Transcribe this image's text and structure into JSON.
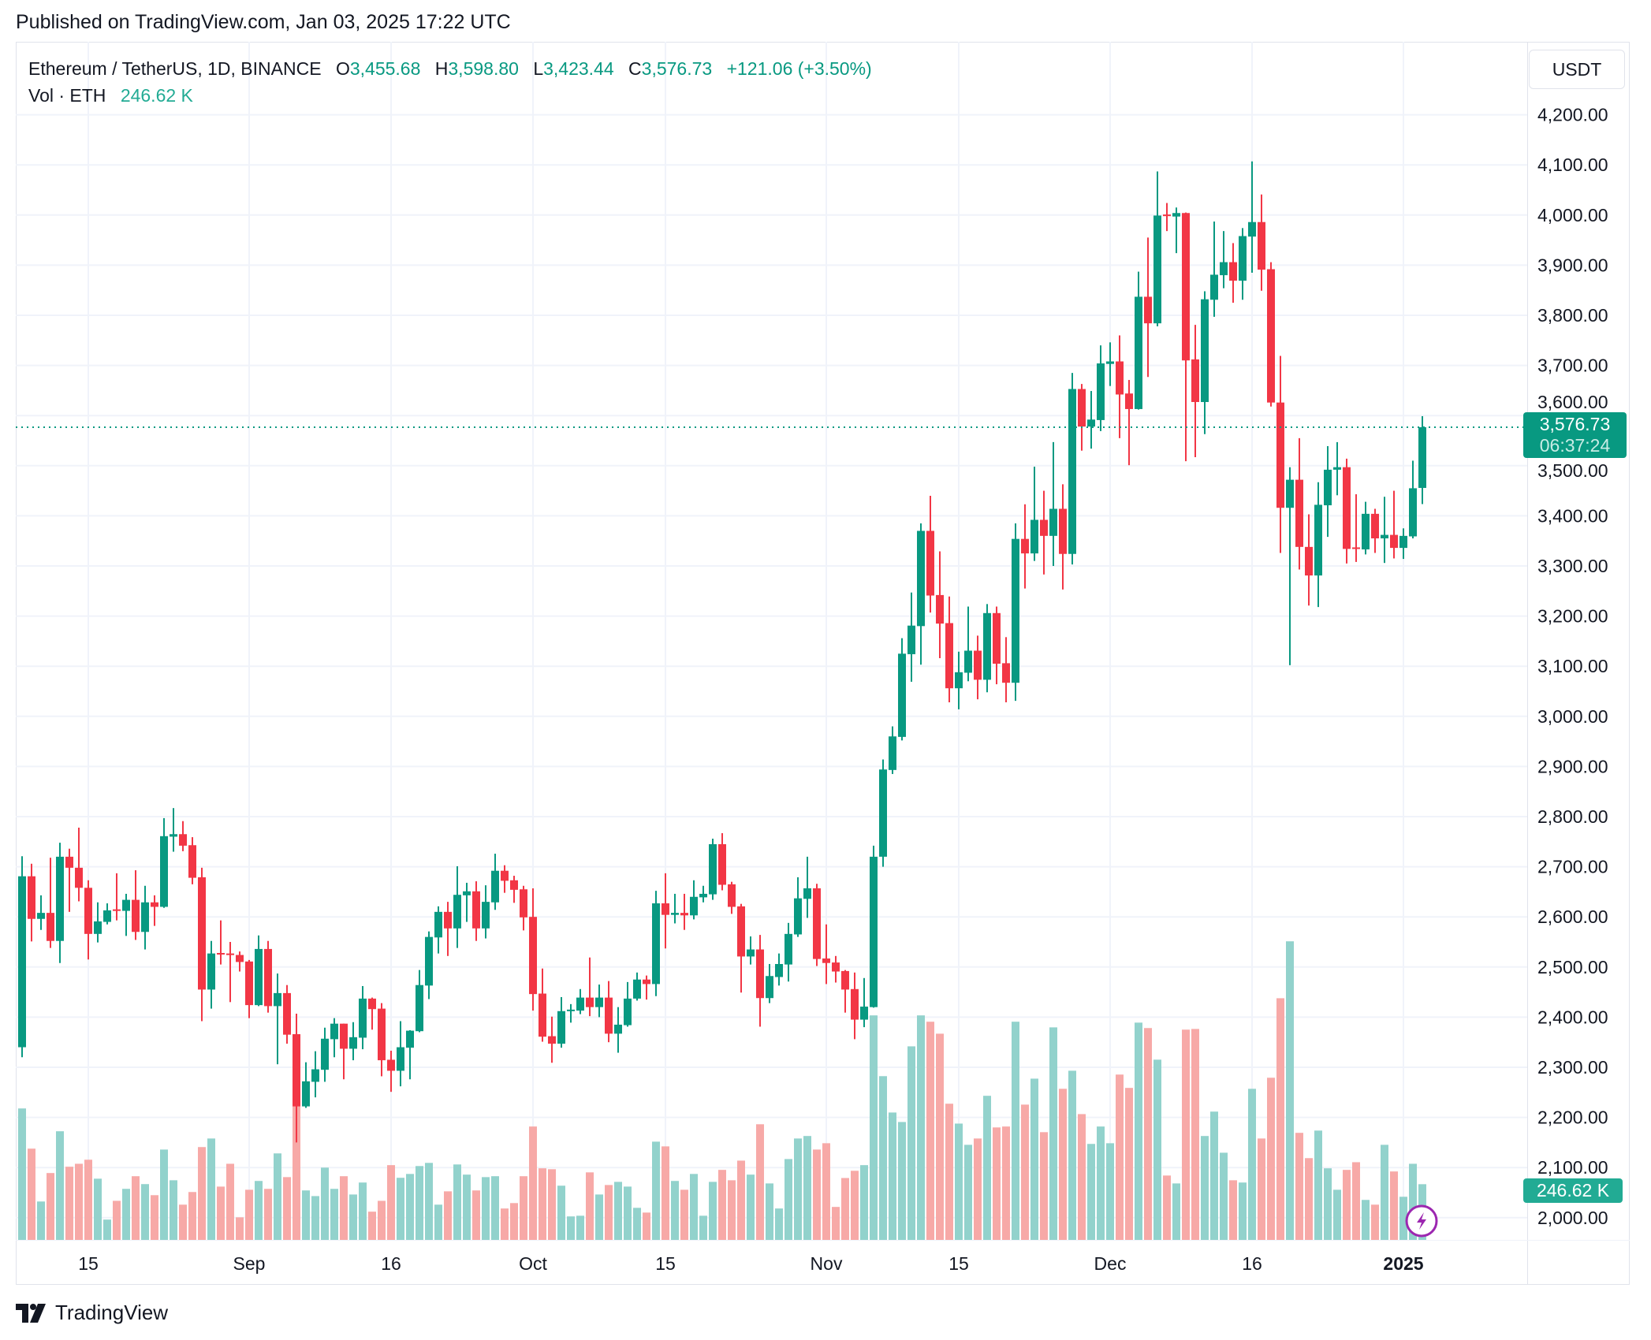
{
  "published": "Published on TradingView.com, Jan 03, 2025 17:22 UTC",
  "legend": {
    "symbol": "Ethereum / TetherUS, 1D, BINANCE",
    "o_label": "O",
    "o": "3,455.68",
    "h_label": "H",
    "h": "3,598.80",
    "l_label": "L",
    "l": "3,423.44",
    "c_label": "C",
    "c": "3,576.73",
    "change": "+121.06 (+3.50%)",
    "vol_label": "Vol · ETH",
    "vol": "246.62 K"
  },
  "currency_button": "USDT",
  "last_price": {
    "price": "3,576.73",
    "countdown": "06:37:24",
    "value": 3576.73
  },
  "volume_badge": "246.62 K",
  "brand": "TradingView",
  "colors": {
    "up": "#089981",
    "down": "#F23645",
    "up_volume": "#92d2cc",
    "down_volume": "#f7a9a7",
    "grid": "#f0f3fa",
    "alert_icon": "#9c27b0"
  },
  "icons": {
    "logo": "tradingview-logo-icon",
    "alert": "lightning-icon"
  },
  "chart_data": {
    "type": "candlestick",
    "title": "Ethereum / TetherUS, 1D, BINANCE",
    "ylim": [
      1950,
      4230
    ],
    "volume_unit": "K ETH",
    "grid": true,
    "y_ticks": [
      {
        "value": 4200,
        "label": "4,200.00"
      },
      {
        "value": 4100,
        "label": "4,100.00"
      },
      {
        "value": 4000,
        "label": "4,000.00"
      },
      {
        "value": 3900,
        "label": "3,900.00"
      },
      {
        "value": 3800,
        "label": "3,800.00"
      },
      {
        "value": 3700,
        "label": "3,700.00"
      },
      {
        "value": 3600,
        "label": "3,600.00"
      },
      {
        "value": 3500,
        "label": "3,500.00"
      },
      {
        "value": 3400,
        "label": "3,400.00"
      },
      {
        "value": 3300,
        "label": "3,300.00"
      },
      {
        "value": 3200,
        "label": "3,200.00"
      },
      {
        "value": 3100,
        "label": "3,100.00"
      },
      {
        "value": 3000,
        "label": "3,000.00"
      },
      {
        "value": 2900,
        "label": "2,900.00"
      },
      {
        "value": 2800,
        "label": "2,800.00"
      },
      {
        "value": 2700,
        "label": "2,700.00"
      },
      {
        "value": 2600,
        "label": "2,600.00"
      },
      {
        "value": 2500,
        "label": "2,500.00"
      },
      {
        "value": 2400,
        "label": "2,400.00"
      },
      {
        "value": 2300,
        "label": "2,300.00"
      },
      {
        "value": 2200,
        "label": "2,200.00"
      },
      {
        "value": 2100,
        "label": "2,100.00"
      },
      {
        "value": 2000,
        "label": "2,000.00"
      }
    ],
    "x_ticks": [
      {
        "date": "2024-08-15",
        "label": "15"
      },
      {
        "date": "2024-09-01",
        "label": "Sep"
      },
      {
        "date": "2024-09-16",
        "label": "16"
      },
      {
        "date": "2024-10-01",
        "label": "Oct"
      },
      {
        "date": "2024-10-15",
        "label": "15"
      },
      {
        "date": "2024-11-01",
        "label": "Nov"
      },
      {
        "date": "2024-11-15",
        "label": "15"
      },
      {
        "date": "2024-12-01",
        "label": "Dec"
      },
      {
        "date": "2024-12-16",
        "label": "16"
      },
      {
        "date": "2025-01-01",
        "label": "2025",
        "bold": true
      }
    ],
    "columns": [
      "date",
      "open",
      "high",
      "low",
      "close",
      "volume"
    ],
    "candles": [
      [
        "2024-08-08",
        2340,
        2721,
        2320,
        2681,
        582
      ],
      [
        "2024-08-09",
        2681,
        2706,
        2551,
        2596,
        404
      ],
      [
        "2024-08-10",
        2596,
        2643,
        2574,
        2608,
        170
      ],
      [
        "2024-08-11",
        2608,
        2718,
        2538,
        2552,
        296
      ],
      [
        "2024-08-12",
        2552,
        2748,
        2508,
        2720,
        481
      ],
      [
        "2024-08-13",
        2720,
        2736,
        2610,
        2698,
        324
      ],
      [
        "2024-08-14",
        2698,
        2778,
        2631,
        2658,
        337
      ],
      [
        "2024-08-15",
        2658,
        2673,
        2515,
        2566,
        355
      ],
      [
        "2024-08-16",
        2566,
        2629,
        2549,
        2591,
        271
      ],
      [
        "2024-08-17",
        2590,
        2627,
        2585,
        2613,
        90
      ],
      [
        "2024-08-18",
        2615,
        2687,
        2593,
        2612,
        173
      ],
      [
        "2024-08-19",
        2612,
        2646,
        2562,
        2634,
        226
      ],
      [
        "2024-08-20",
        2634,
        2693,
        2554,
        2570,
        282
      ],
      [
        "2024-08-21",
        2570,
        2662,
        2535,
        2629,
        247
      ],
      [
        "2024-08-22",
        2629,
        2643,
        2582,
        2620,
        198
      ],
      [
        "2024-08-23",
        2620,
        2797,
        2618,
        2761,
        400
      ],
      [
        "2024-08-24",
        2760,
        2817,
        2730,
        2765,
        264
      ],
      [
        "2024-08-25",
        2765,
        2791,
        2731,
        2742,
        156
      ],
      [
        "2024-08-26",
        2743,
        2759,
        2665,
        2678,
        212
      ],
      [
        "2024-08-27",
        2679,
        2698,
        2392,
        2455,
        411
      ],
      [
        "2024-08-28",
        2455,
        2552,
        2417,
        2527,
        449
      ],
      [
        "2024-08-29",
        2528,
        2593,
        2505,
        2526,
        236
      ],
      [
        "2024-08-30",
        2527,
        2550,
        2430,
        2524,
        337
      ],
      [
        "2024-08-31",
        2524,
        2531,
        2491,
        2510,
        100
      ],
      [
        "2024-09-01",
        2511,
        2514,
        2398,
        2424,
        222
      ],
      [
        "2024-09-02",
        2424,
        2563,
        2422,
        2536,
        261
      ],
      [
        "2024-09-03",
        2536,
        2552,
        2409,
        2422,
        226
      ],
      [
        "2024-09-04",
        2422,
        2487,
        2306,
        2448,
        383
      ],
      [
        "2024-09-05",
        2448,
        2464,
        2347,
        2365,
        278
      ],
      [
        "2024-09-06",
        2366,
        2407,
        2150,
        2222,
        593
      ],
      [
        "2024-09-07",
        2222,
        2310,
        2219,
        2272,
        219
      ],
      [
        "2024-09-08",
        2271,
        2332,
        2240,
        2296,
        194
      ],
      [
        "2024-09-09",
        2295,
        2379,
        2271,
        2357,
        320
      ],
      [
        "2024-09-10",
        2356,
        2398,
        2320,
        2387,
        226
      ],
      [
        "2024-09-11",
        2387,
        2387,
        2276,
        2337,
        282
      ],
      [
        "2024-09-12",
        2337,
        2390,
        2314,
        2360,
        201
      ],
      [
        "2024-09-13",
        2359,
        2462,
        2336,
        2437,
        254
      ],
      [
        "2024-09-14",
        2437,
        2439,
        2375,
        2416,
        125
      ],
      [
        "2024-09-15",
        2417,
        2428,
        2282,
        2314,
        173
      ],
      [
        "2024-09-16",
        2315,
        2333,
        2251,
        2293,
        331
      ],
      [
        "2024-09-17",
        2293,
        2392,
        2262,
        2340,
        275
      ],
      [
        "2024-09-18",
        2339,
        2374,
        2276,
        2373,
        292
      ],
      [
        "2024-09-19",
        2372,
        2494,
        2370,
        2464,
        327
      ],
      [
        "2024-09-20",
        2463,
        2571,
        2436,
        2560,
        341
      ],
      [
        "2024-09-21",
        2559,
        2621,
        2527,
        2610,
        156
      ],
      [
        "2024-09-22",
        2610,
        2630,
        2522,
        2577,
        215
      ],
      [
        "2024-09-23",
        2577,
        2701,
        2538,
        2644,
        334
      ],
      [
        "2024-09-24",
        2643,
        2668,
        2590,
        2651,
        289
      ],
      [
        "2024-09-25",
        2651,
        2671,
        2552,
        2577,
        219
      ],
      [
        "2024-09-26",
        2577,
        2663,
        2557,
        2630,
        278
      ],
      [
        "2024-09-27",
        2629,
        2726,
        2614,
        2692,
        282
      ],
      [
        "2024-09-28",
        2692,
        2703,
        2648,
        2672,
        139
      ],
      [
        "2024-09-29",
        2673,
        2682,
        2628,
        2654,
        163
      ],
      [
        "2024-09-30",
        2655,
        2662,
        2573,
        2599,
        282
      ],
      [
        "2024-10-01",
        2600,
        2657,
        2413,
        2446,
        502
      ],
      [
        "2024-10-02",
        2447,
        2497,
        2351,
        2361,
        317
      ],
      [
        "2024-10-03",
        2362,
        2401,
        2309,
        2347,
        313
      ],
      [
        "2024-10-04",
        2347,
        2440,
        2339,
        2412,
        240
      ],
      [
        "2024-10-05",
        2413,
        2426,
        2389,
        2415,
        104
      ],
      [
        "2024-10-06",
        2413,
        2456,
        2406,
        2439,
        107
      ],
      [
        "2024-10-07",
        2439,
        2519,
        2402,
        2420,
        299
      ],
      [
        "2024-10-08",
        2420,
        2465,
        2400,
        2439,
        201
      ],
      [
        "2024-10-09",
        2439,
        2472,
        2350,
        2367,
        243
      ],
      [
        "2024-10-10",
        2367,
        2420,
        2329,
        2385,
        257
      ],
      [
        "2024-10-11",
        2384,
        2470,
        2381,
        2437,
        236
      ],
      [
        "2024-10-12",
        2437,
        2489,
        2433,
        2475,
        142
      ],
      [
        "2024-10-13",
        2475,
        2483,
        2435,
        2466,
        121
      ],
      [
        "2024-10-14",
        2466,
        2652,
        2442,
        2627,
        435
      ],
      [
        "2024-10-15",
        2627,
        2687,
        2537,
        2604,
        414
      ],
      [
        "2024-10-16",
        2604,
        2646,
        2587,
        2608,
        261
      ],
      [
        "2024-10-17",
        2608,
        2646,
        2574,
        2603,
        222
      ],
      [
        "2024-10-18",
        2603,
        2673,
        2595,
        2640,
        292
      ],
      [
        "2024-10-19",
        2639,
        2662,
        2629,
        2646,
        107
      ],
      [
        "2024-10-20",
        2645,
        2756,
        2634,
        2745,
        257
      ],
      [
        "2024-10-21",
        2745,
        2767,
        2653,
        2664,
        310
      ],
      [
        "2024-10-22",
        2665,
        2670,
        2606,
        2620,
        264
      ],
      [
        "2024-10-23",
        2621,
        2626,
        2449,
        2521,
        351
      ],
      [
        "2024-10-24",
        2521,
        2561,
        2505,
        2535,
        289
      ],
      [
        "2024-10-25",
        2535,
        2564,
        2381,
        2438,
        512
      ],
      [
        "2024-10-26",
        2438,
        2506,
        2428,
        2482,
        250
      ],
      [
        "2024-10-27",
        2480,
        2527,
        2463,
        2506,
        139
      ],
      [
        "2024-10-28",
        2505,
        2588,
        2471,
        2566,
        358
      ],
      [
        "2024-10-29",
        2565,
        2679,
        2560,
        2637,
        449
      ],
      [
        "2024-10-30",
        2636,
        2720,
        2598,
        2657,
        460
      ],
      [
        "2024-10-31",
        2657,
        2666,
        2502,
        2516,
        400
      ],
      [
        "2024-11-01",
        2517,
        2585,
        2466,
        2508,
        428
      ],
      [
        "2024-11-02",
        2509,
        2522,
        2469,
        2491,
        146
      ],
      [
        "2024-11-03",
        2492,
        2494,
        2409,
        2455,
        274
      ],
      [
        "2024-11-04",
        2456,
        2489,
        2356,
        2395,
        306
      ],
      [
        "2024-11-05",
        2395,
        2478,
        2380,
        2421,
        331
      ],
      [
        "2024-11-06",
        2420,
        2742,
        2419,
        2720,
        994
      ],
      [
        "2024-11-07",
        2720,
        2914,
        2700,
        2894,
        725
      ],
      [
        "2024-11-08",
        2893,
        2980,
        2885,
        2960,
        564
      ],
      [
        "2024-11-09",
        2959,
        3156,
        2952,
        3125,
        522
      ],
      [
        "2024-11-10",
        3124,
        3247,
        3069,
        3181,
        857
      ],
      [
        "2024-11-11",
        3180,
        3385,
        3103,
        3370,
        994
      ],
      [
        "2024-11-12",
        3370,
        3440,
        3207,
        3241,
        966
      ],
      [
        "2024-11-13",
        3242,
        3329,
        3116,
        3185,
        913
      ],
      [
        "2024-11-14",
        3186,
        3239,
        3028,
        3056,
        603
      ],
      [
        "2024-11-15",
        3056,
        3129,
        3014,
        3088,
        515
      ],
      [
        "2024-11-16",
        3087,
        3219,
        3070,
        3131,
        421
      ],
      [
        "2024-11-17",
        3131,
        3161,
        3034,
        3073,
        449
      ],
      [
        "2024-11-18",
        3073,
        3224,
        3048,
        3206,
        638
      ],
      [
        "2024-11-19",
        3206,
        3219,
        3064,
        3105,
        498
      ],
      [
        "2024-11-20",
        3106,
        3158,
        3028,
        3067,
        502
      ],
      [
        "2024-11-21",
        3067,
        3385,
        3031,
        3354,
        966
      ],
      [
        "2024-11-22",
        3354,
        3423,
        3255,
        3325,
        599
      ],
      [
        "2024-11-23",
        3325,
        3498,
        3310,
        3392,
        714
      ],
      [
        "2024-11-24",
        3392,
        3450,
        3283,
        3360,
        477
      ],
      [
        "2024-11-25",
        3360,
        3547,
        3300,
        3414,
        941
      ],
      [
        "2024-11-26",
        3414,
        3463,
        3253,
        3324,
        669
      ],
      [
        "2024-11-27",
        3324,
        3685,
        3303,
        3653,
        749
      ],
      [
        "2024-11-28",
        3653,
        3663,
        3530,
        3578,
        557
      ],
      [
        "2024-11-29",
        3578,
        3649,
        3534,
        3592,
        425
      ],
      [
        "2024-11-30",
        3591,
        3740,
        3569,
        3704,
        502
      ],
      [
        "2024-12-01",
        3703,
        3746,
        3659,
        3708,
        428
      ],
      [
        "2024-12-02",
        3708,
        3760,
        3555,
        3642,
        732
      ],
      [
        "2024-12-03",
        3644,
        3671,
        3501,
        3613,
        673
      ],
      [
        "2024-12-04",
        3613,
        3887,
        3612,
        3837,
        962
      ],
      [
        "2024-12-05",
        3837,
        3955,
        3677,
        3784,
        938
      ],
      [
        "2024-12-06",
        3784,
        4087,
        3778,
        3999,
        798
      ],
      [
        "2024-12-07",
        4001,
        4024,
        3968,
        3998,
        285
      ],
      [
        "2024-12-08",
        3997,
        4015,
        3924,
        4004,
        250
      ],
      [
        "2024-12-09",
        4004,
        4005,
        3509,
        3710,
        931
      ],
      [
        "2024-12-10",
        3712,
        3781,
        3517,
        3627,
        934
      ],
      [
        "2024-12-11",
        3627,
        3848,
        3563,
        3832,
        460
      ],
      [
        "2024-12-12",
        3831,
        3987,
        3797,
        3881,
        568
      ],
      [
        "2024-12-13",
        3880,
        3968,
        3854,
        3906,
        386
      ],
      [
        "2024-12-14",
        3906,
        3944,
        3825,
        3869,
        264
      ],
      [
        "2024-12-15",
        3869,
        3974,
        3831,
        3958,
        254
      ],
      [
        "2024-12-16",
        3957,
        4107,
        3885,
        3986,
        669
      ],
      [
        "2024-12-17",
        3986,
        4041,
        3849,
        3891,
        449
      ],
      [
        "2024-12-18",
        3892,
        3906,
        3618,
        3626,
        718
      ],
      [
        "2024-12-19",
        3626,
        3719,
        3326,
        3416,
        1070
      ],
      [
        "2024-12-20",
        3416,
        3497,
        3102,
        3472,
        1322
      ],
      [
        "2024-12-21",
        3472,
        3555,
        3293,
        3338,
        474
      ],
      [
        "2024-12-22",
        3338,
        3403,
        3221,
        3281,
        362
      ],
      [
        "2024-12-23",
        3281,
        3467,
        3218,
        3422,
        484
      ],
      [
        "2024-12-24",
        3421,
        3539,
        3358,
        3492,
        317
      ],
      [
        "2024-12-25",
        3492,
        3547,
        3441,
        3497,
        222
      ],
      [
        "2024-12-26",
        3497,
        3514,
        3305,
        3334,
        310
      ],
      [
        "2024-12-27",
        3337,
        3443,
        3308,
        3334,
        344
      ],
      [
        "2024-12-28",
        3333,
        3428,
        3323,
        3404,
        177
      ],
      [
        "2024-12-29",
        3404,
        3414,
        3326,
        3355,
        156
      ],
      [
        "2024-12-30",
        3355,
        3438,
        3306,
        3362,
        421
      ],
      [
        "2024-12-31",
        3362,
        3450,
        3315,
        3336,
        303
      ],
      [
        "2025-01-01",
        3336,
        3375,
        3314,
        3360,
        191
      ],
      [
        "2025-01-02",
        3359,
        3510,
        3355,
        3455,
        337
      ],
      [
        "2025-01-03",
        3455.68,
        3598.8,
        3423.44,
        3576.73,
        246.62
      ]
    ]
  }
}
